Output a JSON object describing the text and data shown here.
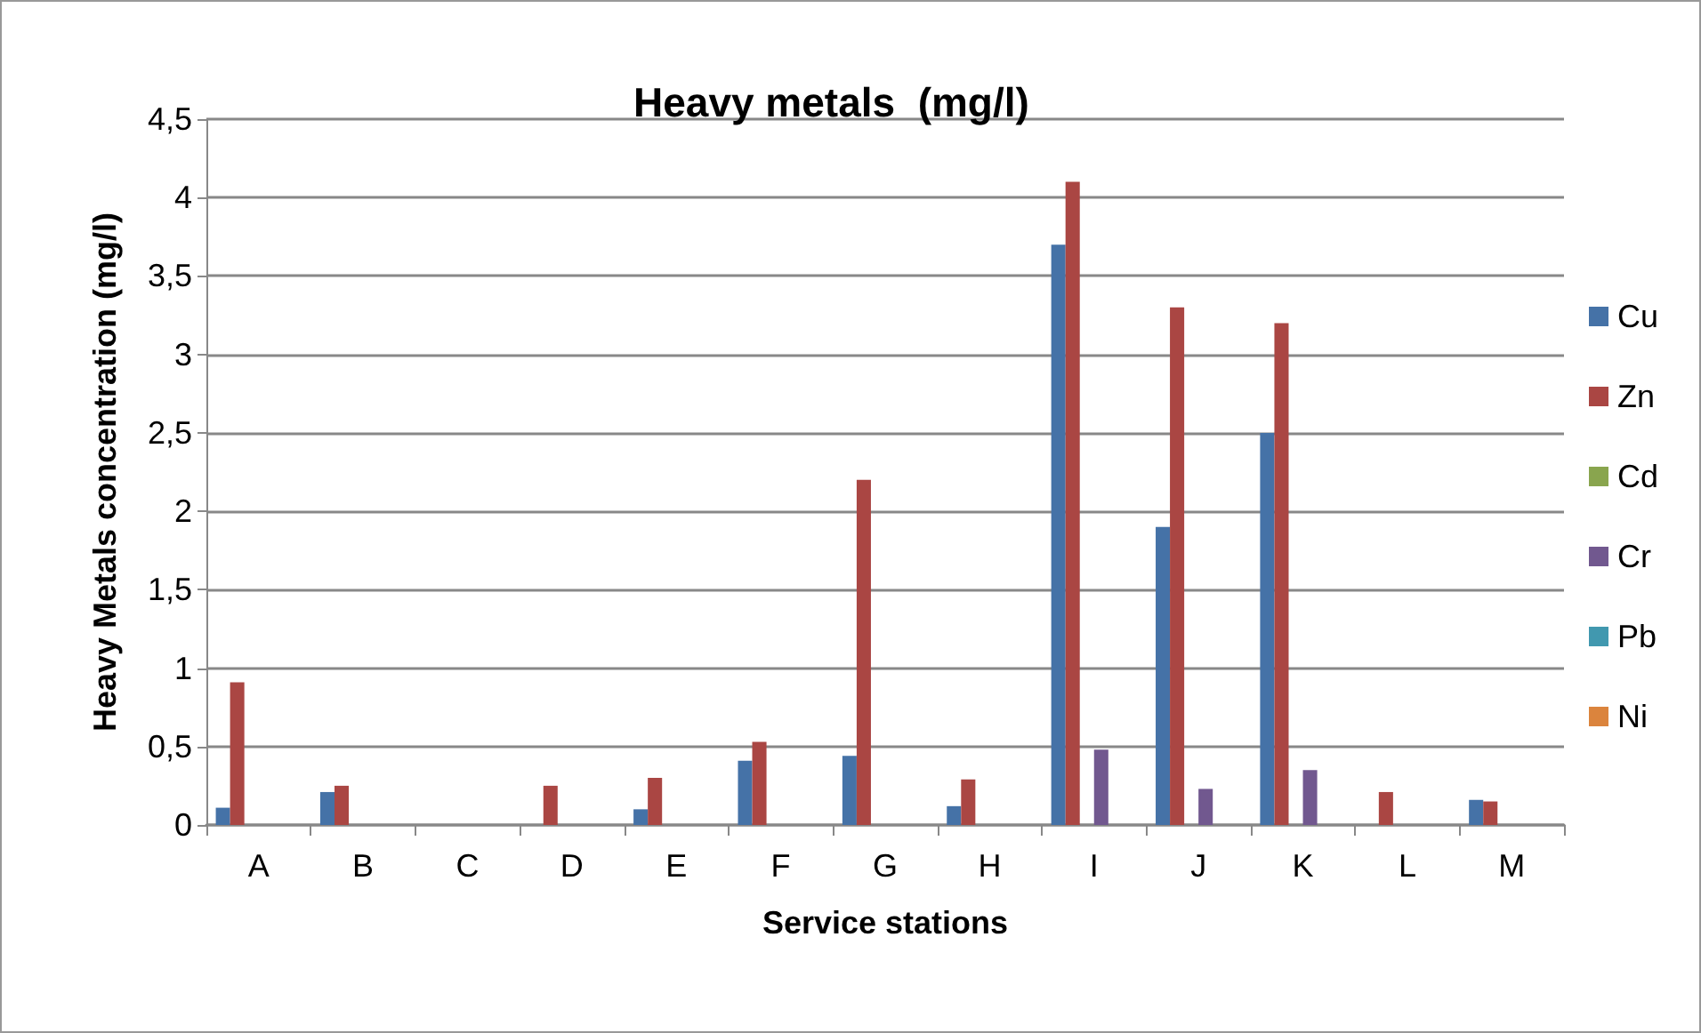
{
  "chart_data": {
    "type": "bar",
    "title": "Heavy metals  (mg/l)",
    "xlabel": "Service stations",
    "ylabel": "Heavy Metals concentration (mg/l)",
    "categories": [
      "A",
      "B",
      "C",
      "D",
      "E",
      "F",
      "G",
      "H",
      "I",
      "J",
      "K",
      "L",
      "M"
    ],
    "series": [
      {
        "name": "Cu",
        "color": "#4572a7",
        "values": [
          0.11,
          0.21,
          0,
          0,
          0.1,
          0.41,
          0.44,
          0.12,
          3.7,
          1.9,
          2.5,
          0,
          0.16
        ]
      },
      {
        "name": "Zn",
        "color": "#aa4643",
        "values": [
          0.91,
          0.25,
          0,
          0.25,
          0.3,
          0.53,
          2.2,
          0.29,
          4.1,
          3.3,
          3.2,
          0.21,
          0.15
        ]
      },
      {
        "name": "Cd",
        "color": "#89a54e",
        "values": [
          0,
          0,
          0,
          0,
          0,
          0,
          0,
          0,
          0,
          0,
          0,
          0,
          0
        ]
      },
      {
        "name": "Cr",
        "color": "#71588f",
        "values": [
          0,
          0,
          0,
          0,
          0,
          0,
          0,
          0,
          0.48,
          0.23,
          0.35,
          0,
          0
        ]
      },
      {
        "name": "Pb",
        "color": "#4198af",
        "values": [
          0,
          0,
          0,
          0,
          0,
          0,
          0,
          0,
          0,
          0,
          0,
          0,
          0
        ]
      },
      {
        "name": "Ni",
        "color": "#db843d",
        "values": [
          0,
          0,
          0,
          0,
          0,
          0,
          0,
          0,
          0,
          0,
          0,
          0,
          0
        ]
      }
    ],
    "ylim": [
      0,
      4.5
    ],
    "yticks": [
      0,
      {
        "value": 0.5,
        "label": "0,5"
      },
      1,
      {
        "value": 1.5,
        "label": "1,5"
      },
      2,
      {
        "value": 2.5,
        "label": "2,5"
      },
      3,
      {
        "value": 3.5,
        "label": "3,5"
      },
      4,
      {
        "value": 4.5,
        "label": "4,5"
      }
    ],
    "grid": "y",
    "legend": "right"
  }
}
